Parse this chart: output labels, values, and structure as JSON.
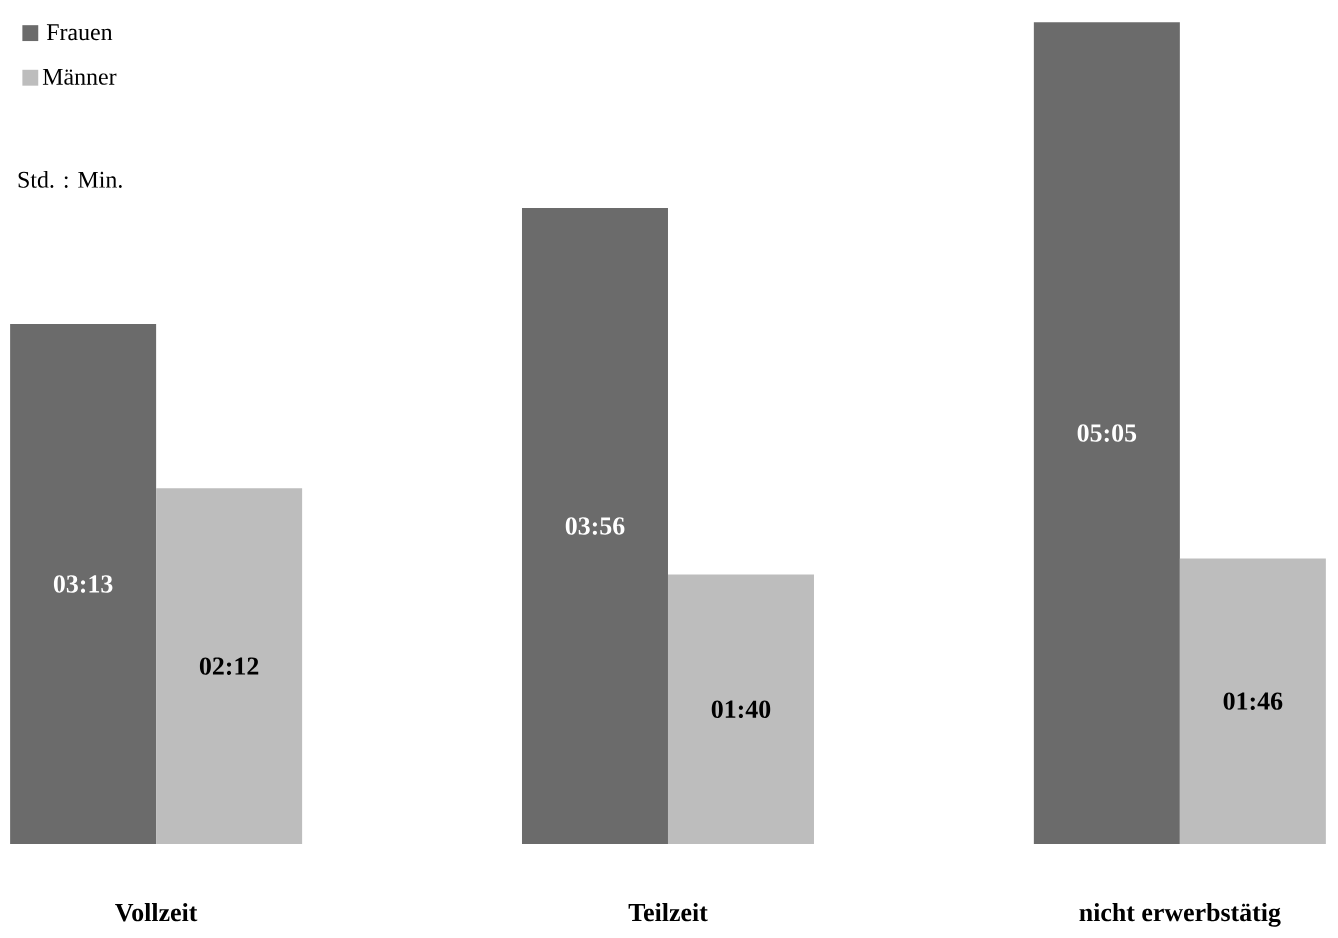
{
  "chart_data": {
    "type": "bar",
    "categories": [
      "Vollzeit",
      "Teilzeit",
      "nicht erwerbstätig"
    ],
    "subtitle": "Std. : Min.",
    "series": [
      {
        "name": "Frauen",
        "color": "#6b6b6b",
        "values": [
          193,
          236,
          305
        ],
        "value_labels": [
          "03:13",
          "03:56",
          "05:05"
        ]
      },
      {
        "name": "Männer",
        "color": "#bdbdbd",
        "values": [
          132,
          100,
          106
        ],
        "value_labels": [
          "02:12",
          "01:40",
          "01:46"
        ]
      }
    ],
    "legend": "top left",
    "grid": false
  }
}
